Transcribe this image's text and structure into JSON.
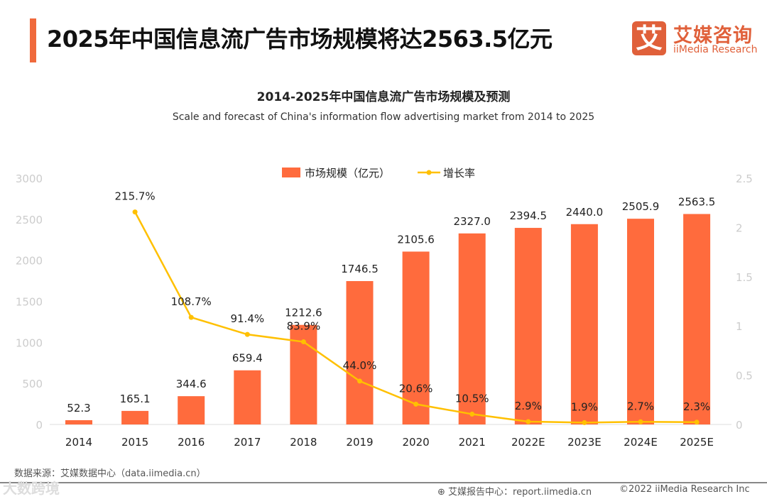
{
  "header": {
    "title": "2025年中国信息流广告市场规模将达2563.5亿元",
    "logo_mark": "艾",
    "logo_cn": "艾媒咨询",
    "logo_en": "iiMedia Research"
  },
  "footer": {
    "source": "数据来源：艾媒数据中心（data.iimedia.cn）",
    "report": "艾媒报告中心：report.iimedia.cn",
    "copyright": "©2022  iiMedia Research  Inc",
    "watermark": "大数跨境"
  },
  "chart_data": {
    "type": "bar+line",
    "title": "2014-2025年中国信息流广告市场规模及预测",
    "subtitle": "Scale and forecast of China's information flow advertising market from 2014 to 2025",
    "categories": [
      "2014",
      "2015",
      "2016",
      "2017",
      "2018",
      "2019",
      "2020",
      "2021",
      "2022E",
      "2023E",
      "2024E",
      "2025E"
    ],
    "series": [
      {
        "name": "市场规模（亿元）",
        "type": "bar",
        "axis": "left",
        "color": "#FF6B3D",
        "values": [
          52.3,
          165.1,
          344.6,
          659.4,
          1212.6,
          1746.5,
          2105.6,
          2327.0,
          2394.5,
          2440.0,
          2505.9,
          2563.5
        ],
        "labels": [
          "52.3",
          "165.1",
          "344.6",
          "659.4",
          "1212.6",
          "1746.5",
          "2105.6",
          "2327.0",
          "2394.5",
          "2440.0",
          "2505.9",
          "2563.5"
        ]
      },
      {
        "name": "增长率",
        "type": "line",
        "axis": "right",
        "color": "#FFC000",
        "values": [
          null,
          2.157,
          1.087,
          0.914,
          0.839,
          0.44,
          0.206,
          0.105,
          0.029,
          0.019,
          0.027,
          0.023
        ],
        "labels": [
          null,
          "215.7%",
          "108.7%",
          "91.4%",
          "83.9%",
          "44.0%",
          "20.6%",
          "10.5%",
          "2.9%",
          "1.9%",
          "2.7%",
          "2.3%"
        ]
      }
    ],
    "left_axis": {
      "ylim": [
        0,
        3000
      ],
      "ticks": [
        "0",
        "500",
        "1000",
        "1500",
        "2000",
        "2500",
        "3000"
      ]
    },
    "right_axis": {
      "ylim": [
        0,
        2.5
      ],
      "ticks": [
        "0",
        "0.5",
        "1",
        "1.5",
        "2",
        "2.5"
      ]
    },
    "legend": "top-center",
    "grid": false
  }
}
